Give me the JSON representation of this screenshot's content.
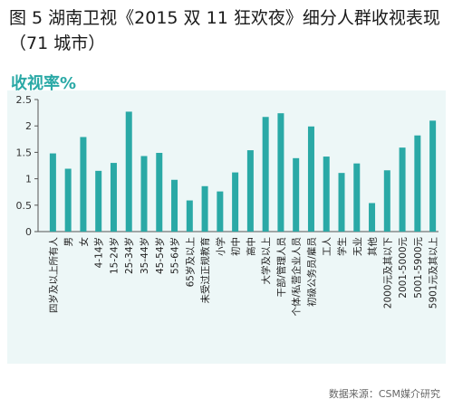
{
  "title": "图 5 湖南卫视《2015 双 11 狂欢夜》细分人群收视表现（71 城市）",
  "source": "数据来源：CSM媒介研究",
  "colors": {
    "bar": "#2aa9a6",
    "accent": "#2aa9a6",
    "background": "#edf7f7"
  },
  "chart_data": {
    "type": "bar",
    "ylabel": "收视率%",
    "ylim": [
      0,
      2.5
    ],
    "yticks": [
      0,
      0.5,
      1,
      1.5,
      2,
      2.5
    ],
    "ytick_labels": [
      "0",
      "0.5",
      "1",
      "1.5",
      "2",
      "2.5"
    ],
    "grid": false,
    "categories": [
      "四岁及以上所有人",
      "男",
      "女",
      "4-14岁",
      "15-24岁",
      "25-34岁",
      "35-44岁",
      "45-54岁",
      "55-64岁",
      "65岁及以上",
      "未受过正规教育",
      "小学",
      "初中",
      "高中",
      "大学及以上",
      "干部/管理人员",
      "个体/私营企业人员",
      "初级公务员/雇员",
      "工人",
      "学生",
      "无业",
      "其他",
      "2000元及其以下",
      "2001-5000元",
      "5001-5900元",
      "5901元及其以上"
    ],
    "values": [
      1.48,
      1.19,
      1.79,
      1.15,
      1.3,
      2.27,
      1.43,
      1.49,
      0.98,
      0.59,
      0.86,
      0.76,
      1.12,
      1.54,
      2.17,
      2.24,
      1.39,
      1.99,
      1.42,
      1.11,
      1.29,
      0.54,
      1.16,
      1.59,
      1.82,
      2.1
    ]
  }
}
